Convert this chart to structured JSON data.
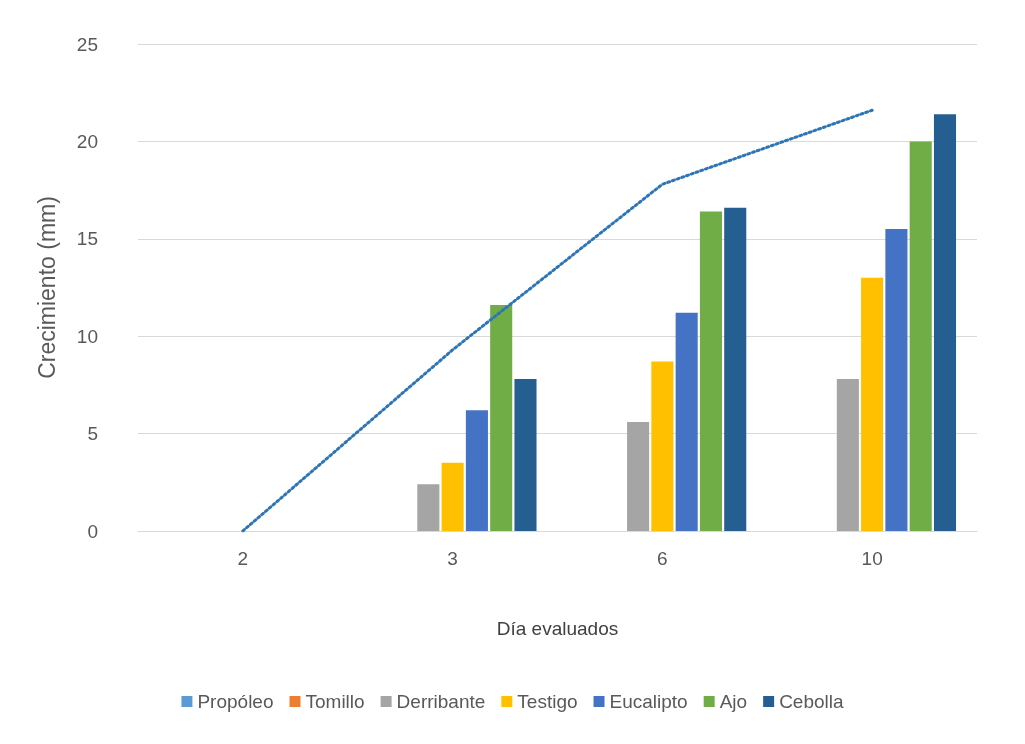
{
  "chart_data": {
    "type": "bar",
    "xlabel": "Día evaluados",
    "ylabel": "Crecimiento (mm)",
    "categories": [
      "2",
      "3",
      "6",
      "10"
    ],
    "series": [
      {
        "name": "Propóleo",
        "color": "#5b9bd5",
        "values": [
          0,
          0,
          0,
          0
        ]
      },
      {
        "name": "Tomillo",
        "color": "#ed7d31",
        "values": [
          0,
          0,
          0,
          0
        ]
      },
      {
        "name": "Derribante",
        "color": "#a5a5a5",
        "values": [
          0,
          2.4,
          5.6,
          7.8
        ]
      },
      {
        "name": "Testigo",
        "color": "#ffc000",
        "values": [
          0,
          3.5,
          8.7,
          13
        ]
      },
      {
        "name": "Eucalipto",
        "color": "#4472c4",
        "values": [
          0,
          6.2,
          11.2,
          15.5
        ]
      },
      {
        "name": "Ajo",
        "color": "#70ad47",
        "values": [
          0,
          11.6,
          16.4,
          20
        ]
      },
      {
        "name": "Cebolla",
        "color": "#255e91",
        "values": [
          0,
          7.8,
          16.6,
          21.4
        ]
      },
      {
        "type": "line",
        "color": "#2e75b6",
        "x": [
          "2",
          "3",
          "6",
          "10"
        ],
        "values": [
          0,
          9.3,
          17.8,
          21.6
        ],
        "line_style": "dotted",
        "marker": "none"
      }
    ],
    "ylim": [
      0,
      25
    ],
    "yticks": [
      0,
      5,
      10,
      15,
      20,
      25
    ],
    "grid": "y",
    "legend": "bottom"
  }
}
